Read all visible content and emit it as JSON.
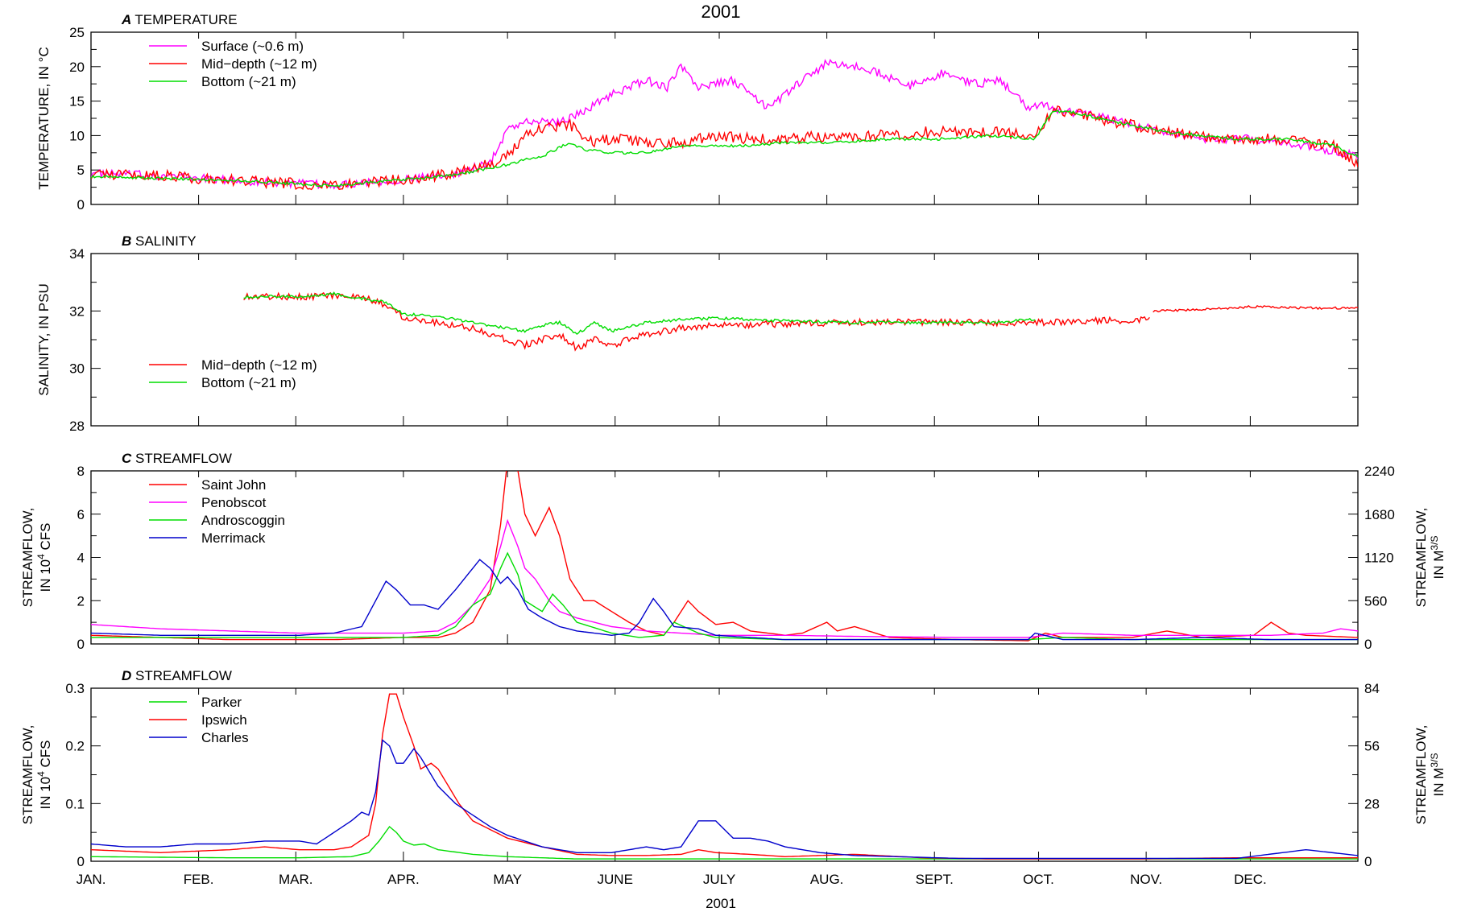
{
  "figure": {
    "title": "2001",
    "xlabel": "2001",
    "months": [
      "JAN.",
      "FEB.",
      "MAR.",
      "APR.",
      "MAY",
      "JUNE",
      "JULY",
      "AUG.",
      "SEPT.",
      "OCT.",
      "NOV.",
      "DEC."
    ]
  },
  "colors": {
    "magenta": "#ff00ff",
    "red": "#ff0000",
    "green": "#00dd00",
    "blue": "#0000cc"
  },
  "chart_data": [
    {
      "type": "line",
      "panel_letter": "A",
      "panel_title": "TEMPERATURE",
      "ylabel_lines": [
        "TEMPERATURE, IN °C"
      ],
      "ylim": [
        0,
        25
      ],
      "yticks": [
        0,
        5,
        10,
        15,
        20,
        25
      ],
      "xlim_days": [
        0,
        365
      ],
      "legend": "top-left",
      "series": [
        {
          "name": "Surface (~0.6 m)",
          "color": "#ff00ff",
          "noise": 0.6,
          "x": [
            0,
            20,
            40,
            60,
            70,
            80,
            90,
            105,
            115,
            120,
            125,
            128,
            135,
            140,
            150,
            160,
            166,
            170,
            175,
            185,
            195,
            205,
            212,
            220,
            228,
            235,
            245,
            255,
            262,
            270,
            275,
            280,
            290,
            305,
            320,
            335,
            350,
            365
          ],
          "y": [
            4.5,
            4.2,
            3.5,
            3,
            2.8,
            3.3,
            3.6,
            4.5,
            6,
            11,
            12,
            12,
            12,
            13,
            16,
            18,
            17,
            20,
            17,
            18,
            14,
            18,
            20.5,
            20,
            19,
            17,
            19,
            17.5,
            18,
            14,
            14.5,
            13.5,
            13,
            11,
            9.5,
            9.5,
            8.5,
            7
          ]
        },
        {
          "name": "Mid−depth (~12 m)",
          "color": "#ff0000",
          "noise": 0.8,
          "x": [
            0,
            20,
            40,
            60,
            70,
            80,
            90,
            105,
            115,
            120,
            125,
            130,
            138,
            145,
            150,
            160,
            170,
            180,
            190,
            200,
            215,
            230,
            240,
            250,
            260,
            272,
            277,
            282,
            295,
            310,
            330,
            345,
            358,
            365
          ],
          "y": [
            4.5,
            4.2,
            3.5,
            3,
            2.8,
            3.3,
            3.6,
            4.5,
            6,
            7,
            10,
            11,
            11.5,
            9,
            9.5,
            9,
            9,
            10,
            9.5,
            9.5,
            10,
            10,
            10.5,
            10.5,
            10.5,
            10,
            13.5,
            13.5,
            12,
            10.5,
            9.5,
            9.5,
            8.5,
            6
          ]
        },
        {
          "name": "Bottom (~21 m)",
          "color": "#00dd00",
          "noise": 0.2,
          "x": [
            0,
            20,
            40,
            60,
            70,
            80,
            90,
            105,
            115,
            120,
            125,
            130,
            138,
            142,
            150,
            160,
            170,
            180,
            190,
            200,
            215,
            230,
            245,
            260,
            272,
            277,
            282,
            295,
            310,
            330,
            345,
            358,
            365
          ],
          "y": [
            4,
            3.8,
            3.5,
            3,
            2.7,
            3.2,
            3.6,
            4.3,
            5.3,
            5.8,
            6.5,
            7,
            9,
            8,
            7.5,
            7.5,
            8.5,
            8.5,
            8.5,
            9,
            9,
            9.5,
            9.5,
            10,
            9.5,
            13.5,
            13.5,
            12,
            10.5,
            9.5,
            9.5,
            8.5,
            7
          ]
        }
      ]
    },
    {
      "type": "line",
      "panel_letter": "B",
      "panel_title": "SALINITY",
      "ylabel_lines": [
        "SALINITY, IN PSU"
      ],
      "ylim": [
        28,
        34
      ],
      "yticks": [
        28,
        30,
        32,
        34
      ],
      "xlim_days": [
        0,
        365
      ],
      "legend": "bottom-left",
      "series": [
        {
          "name": "Mid−depth (~12 m)",
          "color": "#ff0000",
          "noise": 0.12,
          "x": [
            44,
            60,
            70,
            80,
            85,
            90,
            100,
            110,
            120,
            125,
            130,
            135,
            140,
            145,
            150,
            160,
            170,
            180,
            200,
            220,
            240,
            260,
            272,
            285,
            305
          ],
          "y": [
            32.5,
            32.5,
            32.55,
            32.4,
            32.2,
            31.8,
            31.6,
            31.4,
            31.0,
            30.8,
            31.0,
            31.2,
            30.7,
            31.0,
            30.8,
            31.2,
            31.4,
            31.5,
            31.55,
            31.6,
            31.6,
            31.6,
            31.6,
            31.65,
            31.7
          ]
        },
        {
          "name": "Bottom (~21 m)",
          "color": "#00dd00",
          "noise": 0.05,
          "x": [
            44,
            60,
            70,
            80,
            85,
            90,
            100,
            110,
            120,
            125,
            130,
            135,
            140,
            145,
            150,
            160,
            170,
            180,
            200,
            220,
            240,
            260,
            272
          ],
          "y": [
            32.5,
            32.5,
            32.6,
            32.4,
            32.3,
            31.9,
            31.8,
            31.6,
            31.4,
            31.3,
            31.5,
            31.6,
            31.2,
            31.6,
            31.3,
            31.6,
            31.7,
            31.75,
            31.65,
            31.6,
            31.6,
            31.6,
            31.7
          ]
        },
        {
          "name": "",
          "color": "#ff0000",
          "noise": 0.04,
          "x": [
            306,
            320,
            335,
            350,
            365
          ],
          "y": [
            32.0,
            32.05,
            32.15,
            32.1,
            32.1
          ]
        }
      ]
    },
    {
      "type": "line",
      "panel_letter": "C",
      "panel_title": "STREAMFLOW",
      "ylabel_lines": [
        "STREAMFLOW,",
        "IN 10^4 CFS"
      ],
      "ylabel_right_lines": [
        "STREAMFLOW,",
        "IN M^3/S"
      ],
      "ylim": [
        0,
        8
      ],
      "yticks": [
        0,
        2,
        4,
        6,
        8
      ],
      "yticks_right": [
        "0",
        "560",
        "1120",
        "1680",
        "2240"
      ],
      "xlim_days": [
        0,
        365
      ],
      "legend": "top-left",
      "series": [
        {
          "name": "Saint John",
          "color": "#ff0000",
          "x": [
            0,
            20,
            40,
            60,
            70,
            80,
            90,
            95,
            100,
            105,
            110,
            115,
            118,
            120,
            123,
            125,
            128,
            132,
            135,
            138,
            142,
            145,
            150,
            155,
            160,
            165,
            168,
            172,
            175,
            180,
            185,
            190,
            195,
            200,
            205,
            212,
            215,
            220,
            230,
            250,
            270,
            275,
            280,
            300,
            310,
            320,
            335,
            340,
            345,
            350,
            365
          ],
          "y": [
            0.4,
            0.3,
            0.2,
            0.2,
            0.2,
            0.25,
            0.3,
            0.3,
            0.3,
            0.5,
            1.0,
            2.5,
            5.5,
            8.5,
            8.0,
            6.0,
            5.0,
            6.3,
            5.0,
            3.0,
            2.0,
            2.0,
            1.5,
            1.0,
            0.6,
            0.4,
            1.0,
            2.0,
            1.5,
            0.9,
            1.0,
            0.6,
            0.5,
            0.4,
            0.5,
            1.0,
            0.6,
            0.8,
            0.3,
            0.2,
            0.15,
            0.5,
            0.3,
            0.3,
            0.6,
            0.3,
            0.4,
            1.0,
            0.5,
            0.4,
            0.3
          ]
        },
        {
          "name": "Penobscot",
          "color": "#ff00ff",
          "x": [
            0,
            20,
            40,
            60,
            70,
            80,
            90,
            100,
            105,
            110,
            115,
            118,
            120,
            123,
            125,
            128,
            132,
            135,
            140,
            150,
            160,
            170,
            180,
            200,
            220,
            250,
            270,
            280,
            300,
            320,
            340,
            355,
            360,
            365
          ],
          "y": [
            0.9,
            0.7,
            0.6,
            0.5,
            0.5,
            0.5,
            0.5,
            0.6,
            1.0,
            1.8,
            3.0,
            4.5,
            5.7,
            4.5,
            3.5,
            3.0,
            2.0,
            1.5,
            1.2,
            0.8,
            0.6,
            0.5,
            0.4,
            0.4,
            0.35,
            0.3,
            0.3,
            0.5,
            0.4,
            0.4,
            0.4,
            0.5,
            0.7,
            0.6
          ]
        },
        {
          "name": "Androscoggin",
          "color": "#00dd00",
          "x": [
            0,
            20,
            40,
            60,
            70,
            80,
            90,
            100,
            105,
            110,
            115,
            118,
            120,
            123,
            125,
            130,
            133,
            136,
            140,
            150,
            158,
            165,
            168,
            175,
            180,
            200,
            220,
            250,
            270,
            280,
            300,
            320,
            340,
            365
          ],
          "y": [
            0.3,
            0.3,
            0.3,
            0.3,
            0.3,
            0.3,
            0.3,
            0.4,
            0.8,
            1.8,
            2.3,
            3.5,
            4.2,
            3.2,
            2.0,
            1.5,
            2.3,
            1.8,
            1.0,
            0.5,
            0.3,
            0.4,
            1.0,
            0.5,
            0.3,
            0.2,
            0.2,
            0.2,
            0.2,
            0.3,
            0.2,
            0.2,
            0.2,
            0.2
          ]
        },
        {
          "name": "Merrimack",
          "color": "#0000cc",
          "x": [
            0,
            20,
            40,
            60,
            70,
            78,
            82,
            85,
            88,
            92,
            96,
            100,
            105,
            110,
            112,
            115,
            118,
            120,
            123,
            126,
            130,
            135,
            140,
            150,
            155,
            158,
            162,
            165,
            168,
            175,
            180,
            200,
            220,
            250,
            270,
            272,
            280,
            300,
            320,
            340,
            365
          ],
          "y": [
            0.5,
            0.4,
            0.4,
            0.4,
            0.5,
            0.8,
            2.0,
            2.9,
            2.5,
            1.8,
            1.8,
            1.6,
            2.5,
            3.5,
            3.9,
            3.5,
            2.8,
            3.1,
            2.5,
            1.6,
            1.2,
            0.8,
            0.6,
            0.4,
            0.5,
            1.0,
            2.1,
            1.5,
            0.8,
            0.7,
            0.4,
            0.2,
            0.2,
            0.2,
            0.2,
            0.5,
            0.2,
            0.2,
            0.3,
            0.2,
            0.2
          ]
        }
      ]
    },
    {
      "type": "line",
      "panel_letter": "D",
      "panel_title": "STREAMFLOW",
      "ylabel_lines": [
        "STREAMFLOW,",
        "IN 10^4 CFS"
      ],
      "ylabel_right_lines": [
        "STREAMFLOW,",
        "IN M^3/S"
      ],
      "ylim": [
        0,
        0.3
      ],
      "yticks": [
        0,
        0.1,
        0.2,
        0.3
      ],
      "yticks_right": [
        "0",
        "28",
        "56",
        "84"
      ],
      "xlim_days": [
        0,
        365
      ],
      "legend": "top-left",
      "series": [
        {
          "name": "Parker",
          "color": "#00dd00",
          "x": [
            0,
            20,
            40,
            60,
            75,
            80,
            83,
            86,
            88,
            90,
            93,
            96,
            100,
            110,
            120,
            140,
            365
          ],
          "y": [
            0.008,
            0.007,
            0.006,
            0.006,
            0.008,
            0.015,
            0.035,
            0.06,
            0.05,
            0.035,
            0.028,
            0.03,
            0.02,
            0.012,
            0.008,
            0.004,
            0.004
          ]
        },
        {
          "name": "Ipswich",
          "color": "#ff0000",
          "x": [
            0,
            20,
            40,
            50,
            60,
            70,
            75,
            80,
            82,
            84,
            86,
            88,
            90,
            93,
            95,
            98,
            100,
            103,
            106,
            110,
            120,
            130,
            140,
            150,
            160,
            170,
            175,
            180,
            190,
            200,
            220,
            240,
            260,
            300,
            330,
            365
          ],
          "y": [
            0.02,
            0.015,
            0.02,
            0.025,
            0.02,
            0.02,
            0.025,
            0.045,
            0.1,
            0.22,
            0.29,
            0.29,
            0.25,
            0.2,
            0.16,
            0.17,
            0.16,
            0.13,
            0.1,
            0.07,
            0.04,
            0.025,
            0.012,
            0.01,
            0.01,
            0.012,
            0.02,
            0.015,
            0.012,
            0.008,
            0.012,
            0.006,
            0.004,
            0.004,
            0.006,
            0.006
          ]
        },
        {
          "name": "Charles",
          "color": "#0000cc",
          "x": [
            0,
            10,
            20,
            30,
            40,
            50,
            60,
            65,
            70,
            75,
            78,
            80,
            82,
            84,
            86,
            88,
            90,
            93,
            95,
            98,
            100,
            105,
            110,
            115,
            120,
            130,
            140,
            150,
            160,
            165,
            170,
            175,
            180,
            185,
            190,
            195,
            200,
            210,
            220,
            250,
            270,
            300,
            330,
            350,
            365
          ],
          "y": [
            0.03,
            0.025,
            0.025,
            0.03,
            0.03,
            0.035,
            0.035,
            0.03,
            0.05,
            0.07,
            0.085,
            0.08,
            0.12,
            0.21,
            0.2,
            0.17,
            0.17,
            0.195,
            0.18,
            0.15,
            0.13,
            0.1,
            0.08,
            0.06,
            0.045,
            0.025,
            0.015,
            0.015,
            0.025,
            0.02,
            0.025,
            0.07,
            0.07,
            0.04,
            0.04,
            0.035,
            0.025,
            0.015,
            0.01,
            0.005,
            0.005,
            0.005,
            0.005,
            0.02,
            0.01
          ]
        }
      ]
    }
  ]
}
